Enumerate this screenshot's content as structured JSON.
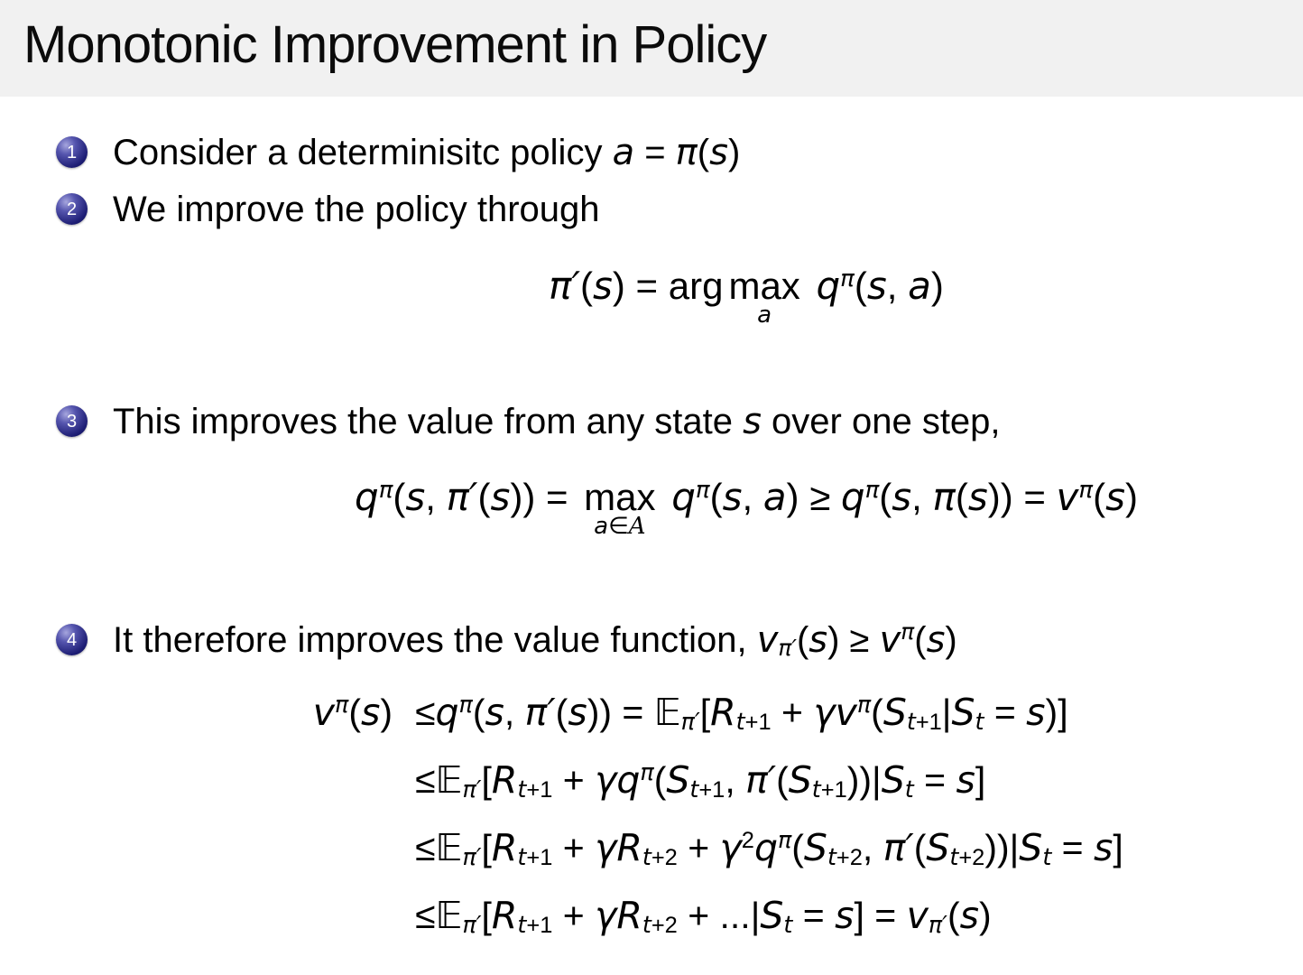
{
  "slide": {
    "title": "Monotonic Improvement in Policy",
    "colors": {
      "header_bg": "#f1f1f1",
      "background": "#ffffff",
      "text": "#000000",
      "bullet_ball_dark": "#0e0e52",
      "bullet_ball_mid": "#1d1d74",
      "bullet_ball_highlight": "#a6a6de",
      "bullet_number_text": "#ffffff"
    },
    "bullets": [
      {
        "number": "1",
        "tokens": [
          {
            "t": "Consider a determinisitc policy "
          },
          {
            "i": "a"
          },
          {
            "t": " = "
          },
          {
            "i": "π"
          },
          {
            "t": "("
          },
          {
            "i": "s"
          },
          {
            "t": ")"
          }
        ]
      },
      {
        "number": "2",
        "tokens": [
          {
            "t": "We improve the policy through"
          }
        ]
      },
      {
        "number": "3",
        "tokens": [
          {
            "t": "This improves the value from any state "
          },
          {
            "i": "s"
          },
          {
            "t": " over one step,"
          }
        ]
      },
      {
        "number": "4",
        "tokens": [
          {
            "t": "It therefore improves the value function, "
          },
          {
            "i": "v"
          },
          {
            "sub": [
              {
                "i": "π′"
              }
            ]
          },
          {
            "t": "("
          },
          {
            "i": "s"
          },
          {
            "t": ") ≥ "
          },
          {
            "i": "v"
          },
          {
            "sup": [
              {
                "i": "π"
              }
            ]
          },
          {
            "t": "("
          },
          {
            "i": "s"
          },
          {
            "t": ")"
          }
        ]
      }
    ],
    "equations": {
      "policy_improvement": {
        "tokens": [
          {
            "i": "π′"
          },
          {
            "t": "("
          },
          {
            "i": "s"
          },
          {
            "t": ") = arg"
          },
          {
            "op": "max",
            "under": [
              {
                "i": "a"
              }
            ]
          },
          {
            "t": " "
          },
          {
            "i": "q"
          },
          {
            "sup": [
              {
                "i": "π"
              }
            ]
          },
          {
            "t": "("
          },
          {
            "i": "s"
          },
          {
            "t": ", "
          },
          {
            "i": "a"
          },
          {
            "t": ")"
          }
        ]
      },
      "one_step": {
        "tokens": [
          {
            "i": "q"
          },
          {
            "sup": [
              {
                "i": "π"
              }
            ]
          },
          {
            "t": "("
          },
          {
            "i": "s"
          },
          {
            "t": ", "
          },
          {
            "i": "π′"
          },
          {
            "t": "("
          },
          {
            "i": "s"
          },
          {
            "t": ")) = "
          },
          {
            "op": "max",
            "under": [
              {
                "i": "a"
              },
              {
                "t": "∈"
              },
              {
                "cal": "A"
              }
            ]
          },
          {
            "t": " "
          },
          {
            "i": "q"
          },
          {
            "sup": [
              {
                "i": "π"
              }
            ]
          },
          {
            "t": "("
          },
          {
            "i": "s"
          },
          {
            "t": ", "
          },
          {
            "i": "a"
          },
          {
            "t": ") ≥ "
          },
          {
            "i": "q"
          },
          {
            "sup": [
              {
                "i": "π"
              }
            ]
          },
          {
            "t": "("
          },
          {
            "i": "s"
          },
          {
            "t": ", "
          },
          {
            "i": "π"
          },
          {
            "t": "("
          },
          {
            "i": "s"
          },
          {
            "t": ")) = "
          },
          {
            "i": "v"
          },
          {
            "sup": [
              {
                "i": "π"
              }
            ]
          },
          {
            "t": "("
          },
          {
            "i": "s"
          },
          {
            "t": ")"
          }
        ]
      },
      "derivation": {
        "rows": [
          {
            "left": [
              {
                "i": "v"
              },
              {
                "sup": [
                  {
                    "i": "π"
                  }
                ]
              },
              {
                "t": "("
              },
              {
                "i": "s"
              },
              {
                "t": ")"
              }
            ],
            "right": [
              {
                "t": "≤"
              },
              {
                "i": "q"
              },
              {
                "sup": [
                  {
                    "i": "π"
                  }
                ]
              },
              {
                "t": "("
              },
              {
                "i": "s"
              },
              {
                "t": ", "
              },
              {
                "i": "π′"
              },
              {
                "t": "("
              },
              {
                "i": "s"
              },
              {
                "t": ")) = "
              },
              {
                "bb": "𝔼"
              },
              {
                "sub": [
                  {
                    "i": "π′"
                  }
                ]
              },
              {
                "t": "["
              },
              {
                "i": "R"
              },
              {
                "sub": [
                  {
                    "i": "t"
                  },
                  {
                    "t": "+1"
                  }
                ]
              },
              {
                "t": " + "
              },
              {
                "i": "γ"
              },
              {
                "i": "v"
              },
              {
                "sup": [
                  {
                    "i": "π"
                  }
                ]
              },
              {
                "t": "("
              },
              {
                "i": "S"
              },
              {
                "sub": [
                  {
                    "i": "t"
                  },
                  {
                    "t": "+1"
                  }
                ]
              },
              {
                "t": "|"
              },
              {
                "i": "S"
              },
              {
                "sub": [
                  {
                    "i": "t"
                  }
                ]
              },
              {
                "t": " = "
              },
              {
                "i": "s"
              },
              {
                "t": ")]"
              }
            ]
          },
          {
            "left": [],
            "right": [
              {
                "t": "≤"
              },
              {
                "bb": "𝔼"
              },
              {
                "sub": [
                  {
                    "i": "π′"
                  }
                ]
              },
              {
                "t": "["
              },
              {
                "i": "R"
              },
              {
                "sub": [
                  {
                    "i": "t"
                  },
                  {
                    "t": "+1"
                  }
                ]
              },
              {
                "t": " + "
              },
              {
                "i": "γ"
              },
              {
                "i": "q"
              },
              {
                "sup": [
                  {
                    "i": "π"
                  }
                ]
              },
              {
                "t": "("
              },
              {
                "i": "S"
              },
              {
                "sub": [
                  {
                    "i": "t"
                  },
                  {
                    "t": "+1"
                  }
                ]
              },
              {
                "t": ", "
              },
              {
                "i": "π′"
              },
              {
                "t": "("
              },
              {
                "i": "S"
              },
              {
                "sub": [
                  {
                    "i": "t"
                  },
                  {
                    "t": "+1"
                  }
                ]
              },
              {
                "t": "))|"
              },
              {
                "i": "S"
              },
              {
                "sub": [
                  {
                    "i": "t"
                  }
                ]
              },
              {
                "t": " = "
              },
              {
                "i": "s"
              },
              {
                "t": "]"
              }
            ]
          },
          {
            "left": [],
            "right": [
              {
                "t": "≤"
              },
              {
                "bb": "𝔼"
              },
              {
                "sub": [
                  {
                    "i": "π′"
                  }
                ]
              },
              {
                "t": "["
              },
              {
                "i": "R"
              },
              {
                "sub": [
                  {
                    "i": "t"
                  },
                  {
                    "t": "+1"
                  }
                ]
              },
              {
                "t": " + "
              },
              {
                "i": "γ"
              },
              {
                "i": "R"
              },
              {
                "sub": [
                  {
                    "i": "t"
                  },
                  {
                    "t": "+2"
                  }
                ]
              },
              {
                "t": " + "
              },
              {
                "i": "γ"
              },
              {
                "sup": [
                  {
                    "t": "2"
                  }
                ]
              },
              {
                "i": "q"
              },
              {
                "sup": [
                  {
                    "i": "π"
                  }
                ]
              },
              {
                "t": "("
              },
              {
                "i": "S"
              },
              {
                "sub": [
                  {
                    "i": "t"
                  },
                  {
                    "t": "+2"
                  }
                ]
              },
              {
                "t": ", "
              },
              {
                "i": "π′"
              },
              {
                "t": "("
              },
              {
                "i": "S"
              },
              {
                "sub": [
                  {
                    "i": "t"
                  },
                  {
                    "t": "+2"
                  }
                ]
              },
              {
                "t": "))|"
              },
              {
                "i": "S"
              },
              {
                "sub": [
                  {
                    "i": "t"
                  }
                ]
              },
              {
                "t": " = "
              },
              {
                "i": "s"
              },
              {
                "t": "]"
              }
            ]
          },
          {
            "left": [],
            "right": [
              {
                "t": "≤"
              },
              {
                "bb": "𝔼"
              },
              {
                "sub": [
                  {
                    "i": "π′"
                  }
                ]
              },
              {
                "t": "["
              },
              {
                "i": "R"
              },
              {
                "sub": [
                  {
                    "i": "t"
                  },
                  {
                    "t": "+1"
                  }
                ]
              },
              {
                "t": " + "
              },
              {
                "i": "γ"
              },
              {
                "i": "R"
              },
              {
                "sub": [
                  {
                    "i": "t"
                  },
                  {
                    "t": "+2"
                  }
                ]
              },
              {
                "t": " + ...|"
              },
              {
                "i": "S"
              },
              {
                "sub": [
                  {
                    "i": "t"
                  }
                ]
              },
              {
                "t": " = "
              },
              {
                "i": "s"
              },
              {
                "t": "] = "
              },
              {
                "i": "v"
              },
              {
                "sub": [
                  {
                    "i": "π′"
                  }
                ]
              },
              {
                "t": "("
              },
              {
                "i": "s"
              },
              {
                "t": ")"
              }
            ]
          }
        ]
      }
    }
  }
}
